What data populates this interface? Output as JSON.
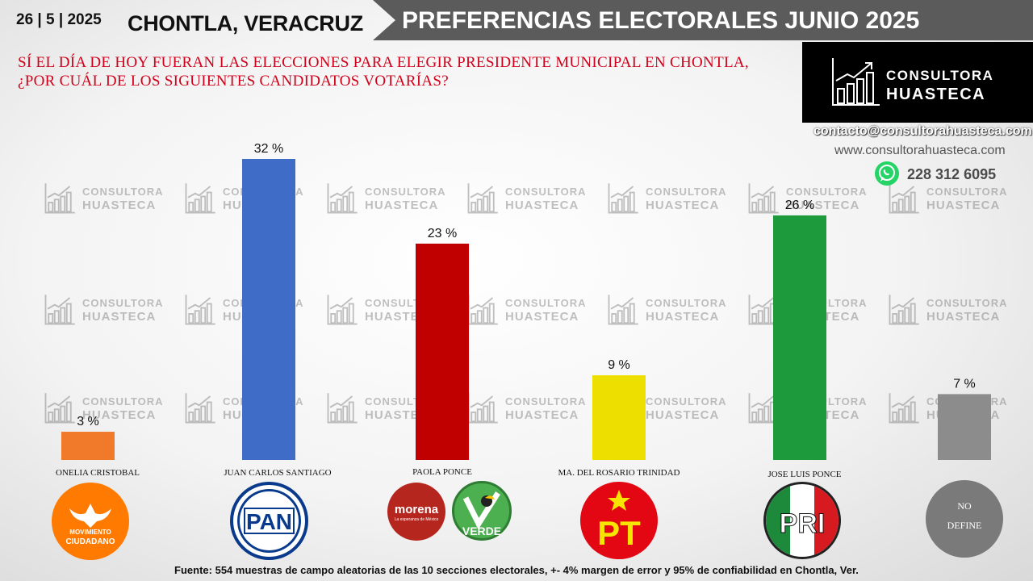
{
  "header": {
    "date": "26 | 5 | 2025",
    "place": "CHONTLA, VERACRUZ",
    "banner": "PREFERENCIAS ELECTORALES JUNIO 2025"
  },
  "question": "SÍ EL DÍA DE HOY FUERAN LAS ELECCIONES PARA ELEGIR PRESIDENTE MUNICIPAL EN CHONTLA,  ¿POR CUÁL DE LOS SIGUIENTES CANDIDATOS VOTARÍAS?",
  "brand": {
    "line1": "CONSULTORA",
    "line2": "HUASTECA",
    "email": "contacto@consultorahuasteca.com",
    "web": "www.consultorahuasteca.com",
    "phone": "228 312 6095",
    "whatsapp_icon": "whatsapp-icon"
  },
  "watermark": {
    "line1": "CONSULTORA",
    "line2": "HUASTECA"
  },
  "chart_data": {
    "type": "bar",
    "categories": [
      "ONELIA CRISTOBAL",
      "JUAN CARLOS SANTIAGO",
      "PAOLA PONCE",
      "MA. DEL ROSARIO TRINIDAD",
      "JOSE LUIS PONCE",
      ""
    ],
    "values": [
      3,
      32,
      23,
      9,
      26,
      7
    ],
    "labels": [
      "3 %",
      "32 %",
      "23 %",
      "9 %",
      "26 %",
      "7 %"
    ],
    "colors": [
      "#f07a2a",
      "#3f6cc7",
      "#c00000",
      "#ede000",
      "#1c9a3c",
      "#8c8c8c"
    ],
    "ylim": [
      0,
      32
    ],
    "grid": false,
    "title": "",
    "xlabel": "",
    "ylabel": ""
  },
  "party_logos": {
    "mc": {
      "line1": "MOVIMIENTO",
      "line2": "CIUDADANO",
      "color": "#ff7a00"
    },
    "pan": {
      "text": "PAN",
      "color": "#0a3a8c"
    },
    "morena": {
      "text": "morena",
      "sub": "La esperanza de México",
      "color": "#b5261e"
    },
    "verde": {
      "text": "VERDE",
      "color": "#4caf50"
    },
    "pt": {
      "text": "PT",
      "color": "#e30613"
    },
    "pri": {
      "text": "PRI"
    },
    "no_define": {
      "line1": "NO",
      "line2": "DEFINE",
      "color": "#7a7a7a"
    }
  },
  "footer": "Fuente:  554 muestras de campo aleatorias de las  10 secciones electorales, +- 4% margen de error y 95% de confiabilidad en Chontla, Ver."
}
